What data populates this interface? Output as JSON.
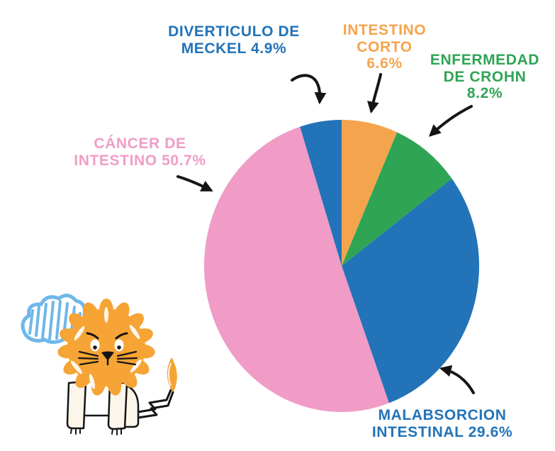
{
  "theme": {
    "background": "#FFFFFF",
    "ink": "#151515",
    "blue": "#2273B8",
    "orange": "#F5A44E",
    "green": "#2FA455",
    "pink": "#F09CC7",
    "cloud": "#6FB7E9",
    "mane": "#F5A435",
    "cream": "#FCF6EA"
  },
  "chart_data": {
    "type": "pie",
    "unit": "%",
    "start_angle": "12-oclock",
    "direction": "clockwise",
    "legend_position": "callout-labels-with-arrows",
    "slices": [
      {
        "id": "intestino-corto",
        "label": "INTESTINO CORTO",
        "value": 6.6,
        "color": "#F5A44E"
      },
      {
        "id": "enfermedad-de-crohn",
        "label": "ENFERMEDAD DE CROHN",
        "value": 8.2,
        "color": "#2FA455"
      },
      {
        "id": "malabsorcion-intestinal",
        "label": "MALABSORCION INTESTINAL",
        "value": 29.6,
        "color": "#2273B8"
      },
      {
        "id": "cancer-de-intestino",
        "label": "CÁNCER DE INTESTINO",
        "value": 50.7,
        "color": "#F09CC7"
      },
      {
        "id": "diverticulo-de-meckel",
        "label": "DIVERTICULO DE MECKEL",
        "value": 4.9,
        "color": "#2273B8"
      }
    ]
  },
  "callouts": {
    "meckel": {
      "lines": [
        "DIVERTICULO DE",
        "MECKEL 4.9%"
      ],
      "color": "#2273B8"
    },
    "corto": {
      "lines": [
        "INTESTINO",
        "CORTO",
        "6.6%"
      ],
      "color": "#F5A44E"
    },
    "crohn": {
      "lines": [
        "ENFERMEDAD",
        "DE CROHN",
        "8.2%"
      ],
      "color": "#2FA455"
    },
    "cancer": {
      "lines": [
        "CÁNCER DE",
        "INTESTINO  50.7%"
      ],
      "color": "#F09CC7"
    },
    "malabsorcion": {
      "lines": [
        "MALABSORCION",
        "INTESTINAL 29.6%"
      ],
      "color": "#2273B8"
    }
  },
  "icons": {
    "arrows": [
      "curved-arrow-down",
      "arrow-down",
      "arrow-down-left",
      "arrow-down-right",
      "curved-arrow-up-left"
    ],
    "illustration": "hand-drawn-lion-with-blue-cloud"
  }
}
